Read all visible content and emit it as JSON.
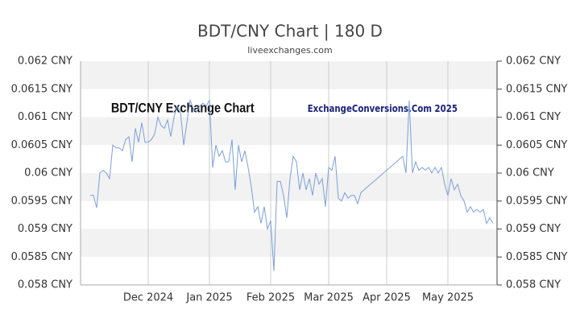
{
  "chart_data": {
    "type": "line",
    "title": "BDT/CNY Chart | 180 D",
    "subtitle": "liveexchanges.com",
    "annotations": [
      "BDT/CNY Exchange Chart",
      "ExchangeConversions.Com 2025"
    ],
    "color": "#7b9fd9",
    "grid": true,
    "ylim": [
      0.058,
      0.062
    ],
    "yticks": [
      {
        "value": 0.058,
        "label": "0.058 CNY"
      },
      {
        "value": 0.0585,
        "label": "0.0585 CNY"
      },
      {
        "value": 0.059,
        "label": "0.059 CNY"
      },
      {
        "value": 0.0595,
        "label": "0.0595 CNY"
      },
      {
        "value": 0.06,
        "label": "0.06 CNY"
      },
      {
        "value": 0.0605,
        "label": "0.0605 CNY"
      },
      {
        "value": 0.061,
        "label": "0.061 CNY"
      },
      {
        "value": 0.0615,
        "label": "0.0615 CNY"
      },
      {
        "value": 0.062,
        "label": "0.062 CNY"
      }
    ],
    "categories": [
      null,
      null,
      null,
      null,
      null,
      null,
      null,
      null,
      null,
      null,
      null,
      null,
      null,
      null,
      null,
      null,
      null,
      null,
      "Dec 2024",
      null,
      null,
      null,
      null,
      null,
      null,
      null,
      null,
      null,
      null,
      null,
      null,
      null,
      null,
      null,
      null,
      null,
      null,
      "Jan 2025",
      null,
      null,
      null,
      null,
      null,
      null,
      null,
      null,
      null,
      null,
      null,
      null,
      null,
      null,
      null,
      null,
      null,
      null,
      "Feb 2025",
      null,
      null,
      null,
      null,
      null,
      null,
      null,
      null,
      null,
      null,
      null,
      null,
      null,
      null,
      null,
      null,
      null,
      "Mar 2025",
      null,
      null,
      null,
      null,
      null,
      null,
      null,
      null,
      null,
      null,
      null,
      null,
      null,
      null,
      null,
      null,
      null,
      "Apr 2025",
      null,
      null,
      null,
      null,
      null,
      null,
      null,
      null,
      null,
      null,
      null,
      null,
      null,
      null,
      null,
      null,
      null,
      null,
      "May 2025",
      null,
      null,
      null,
      null,
      null,
      null,
      null,
      null,
      null,
      null,
      null,
      null,
      null,
      null
    ],
    "values": [
      0.0596,
      0.0596,
      0.05938,
      0.06,
      0.06005,
      0.06,
      0.0599,
      0.0605,
      0.06045,
      0.06045,
      0.0604,
      0.0606,
      0.06065,
      0.0602,
      0.0608,
      0.06055,
      0.0609,
      0.06055,
      0.06055,
      0.0606,
      0.0607,
      0.061,
      0.06085,
      0.0608,
      0.06095,
      0.06065,
      0.061,
      0.0612,
      0.0611,
      0.0605,
      0.0609,
      0.0613,
      0.06115,
      0.0611,
      0.0612,
      0.06125,
      0.0612,
      0.0613,
      0.0601,
      0.0605,
      0.0603,
      0.0604,
      0.0602,
      0.0602,
      0.0606,
      0.0597,
      0.0605,
      0.0602,
      0.0604,
      0.0601,
      0.05975,
      0.0593,
      0.0594,
      0.0591,
      0.0594,
      0.059,
      0.05915,
      0.05825,
      0.05985,
      0.05985,
      0.0596,
      0.0592,
      0.0599,
      0.0603,
      0.0602,
      0.0597,
      0.06,
      0.0597,
      0.0599,
      0.0596,
      0.06,
      0.0598,
      0.0599,
      0.0594,
      0.0601,
      0.06005,
      0.0603,
      0.05955,
      0.0595,
      0.05965,
      0.05955,
      0.0596,
      0.0596,
      0.05945,
      0.05965,
      0.0597,
      0.05975,
      0.0598,
      0.05985,
      0.0599,
      0.05995,
      0.06,
      0.06005,
      0.0601,
      0.06015,
      0.0602,
      0.06025,
      0.0603,
      0.06,
      0.0613,
      0.06,
      0.0602,
      0.06005,
      0.0601,
      0.06005,
      0.0601,
      0.06,
      0.0601,
      0.06,
      0.0601,
      0.0598,
      0.0596,
      0.0599,
      0.0597,
      0.0598,
      0.0596,
      0.0595,
      0.0593,
      0.0594,
      0.0593,
      0.05935,
      0.0593,
      0.05935,
      0.0591,
      0.0592,
      0.0591
    ]
  }
}
